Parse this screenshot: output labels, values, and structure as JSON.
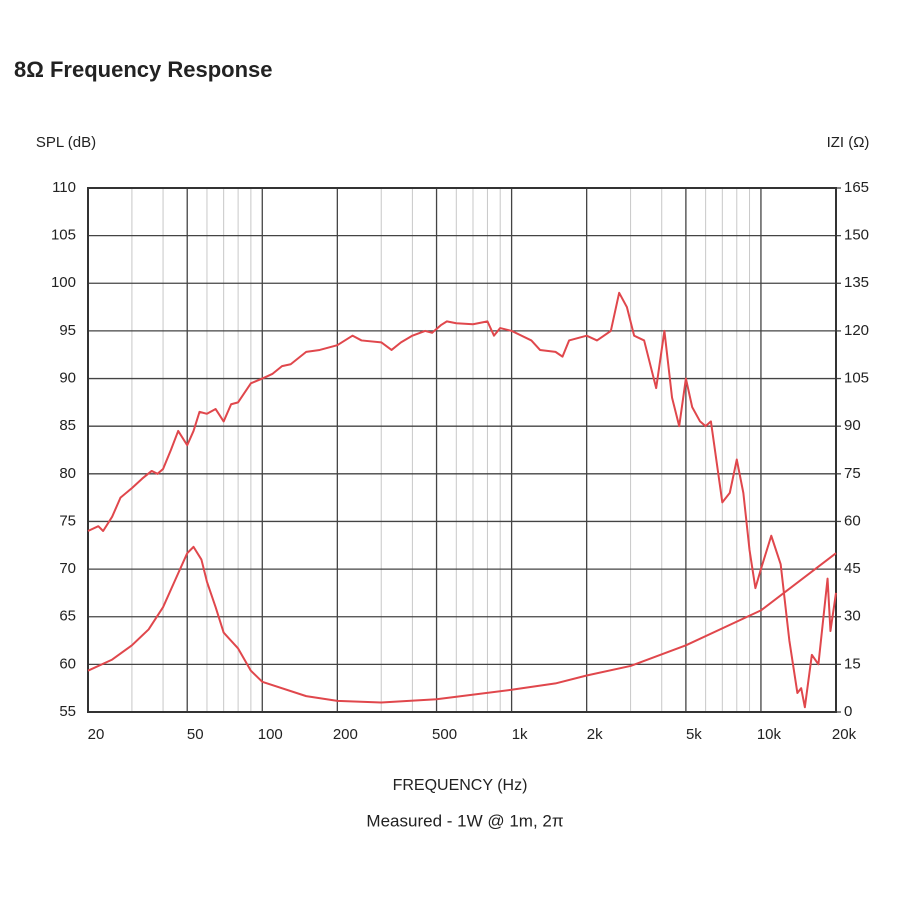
{
  "chart_data": {
    "type": "line",
    "title": "8Ω Frequency Response",
    "ylabel": "SPL (dB)",
    "y2label": "IZI (Ω)",
    "xlabel": "FREQUENCY (Hz)",
    "subtitle": "Measured - 1W @ 1m, 2π",
    "xscale": "log",
    "grid": true,
    "xlim": [
      20,
      20000
    ],
    "xticks": [
      20,
      50,
      100,
      200,
      500,
      {
        "value": 1000,
        "label": "1k"
      },
      {
        "value": 2000,
        "label": "2k"
      },
      {
        "value": 5000,
        "label": "5k"
      },
      {
        "value": 10000,
        "label": "10k"
      },
      {
        "value": 20000,
        "label": "20k"
      }
    ],
    "xminor": [
      30,
      40,
      60,
      70,
      80,
      90,
      300,
      400,
      600,
      700,
      800,
      900,
      3000,
      4000,
      6000,
      7000,
      8000,
      9000
    ],
    "ylim": [
      55,
      110
    ],
    "yticks": [
      55,
      60,
      65,
      70,
      75,
      80,
      85,
      90,
      95,
      100,
      105,
      110
    ],
    "y2lim": [
      0,
      165
    ],
    "y2ticks": [
      0,
      15,
      30,
      45,
      60,
      75,
      90,
      105,
      120,
      135,
      150,
      165
    ],
    "series": [
      {
        "color": "#e0474c",
        "x": [
          20,
          22,
          23,
          25,
          27,
          30,
          33,
          36,
          38,
          40,
          43,
          46,
          50,
          53,
          56,
          60,
          65,
          70,
          75,
          80,
          90,
          100,
          110,
          120,
          130,
          150,
          170,
          200,
          230,
          250,
          300,
          330,
          360,
          400,
          450,
          480,
          520,
          550,
          600,
          700,
          800,
          850,
          900,
          1000,
          1200,
          1300,
          1500,
          1600,
          1700,
          2000,
          2200,
          2500,
          2700,
          2900,
          3100,
          3400,
          3800,
          4100,
          4400,
          4700,
          5000,
          5300,
          5700,
          6000,
          6300,
          7000,
          7500,
          8000,
          8500,
          9000,
          9500,
          10000,
          11000,
          12000,
          13000,
          14000,
          14500,
          15000,
          16000,
          17000,
          18500,
          19000,
          20000
        ],
        "values": [
          74.0,
          74.5,
          74.0,
          75.5,
          77.5,
          78.5,
          79.5,
          80.3,
          80.0,
          80.5,
          82.5,
          84.5,
          83.0,
          84.5,
          86.5,
          86.3,
          86.8,
          85.5,
          87.3,
          87.5,
          89.5,
          90.0,
          90.5,
          91.3,
          91.5,
          92.8,
          93.0,
          93.5,
          94.5,
          94.0,
          93.8,
          93.0,
          93.8,
          94.5,
          95.0,
          94.8,
          95.6,
          96.0,
          95.8,
          95.7,
          96.0,
          94.5,
          95.3,
          95.0,
          94.0,
          93.0,
          92.8,
          92.3,
          94.0,
          94.5,
          94.0,
          95.0,
          99.0,
          97.5,
          94.5,
          94.0,
          89.0,
          95.0,
          88.0,
          85.0,
          90.0,
          87.0,
          85.5,
          85.0,
          85.5,
          77.0,
          78.0,
          81.5,
          78.0,
          72.0,
          68.0,
          70.0,
          73.5,
          70.5,
          62.5,
          57.0,
          57.5,
          55.5,
          61.0,
          60.0,
          69.0,
          63.5,
          67.5
        ]
      },
      {
        "color": "#e0474c",
        "axis": "y2",
        "x": [
          20,
          25,
          30,
          35,
          40,
          45,
          50,
          53,
          57,
          60,
          65,
          70,
          80,
          90,
          100,
          150,
          200,
          300,
          500,
          1000,
          1500,
          2000,
          3000,
          5000,
          10000,
          20000
        ],
        "values": [
          13,
          16.5,
          21,
          26,
          33,
          42,
          50,
          52,
          48,
          41,
          33,
          25,
          20,
          13,
          9.5,
          5,
          3.5,
          3.0,
          4,
          7,
          9,
          11.5,
          14.5,
          21,
          32,
          50
        ]
      }
    ]
  }
}
